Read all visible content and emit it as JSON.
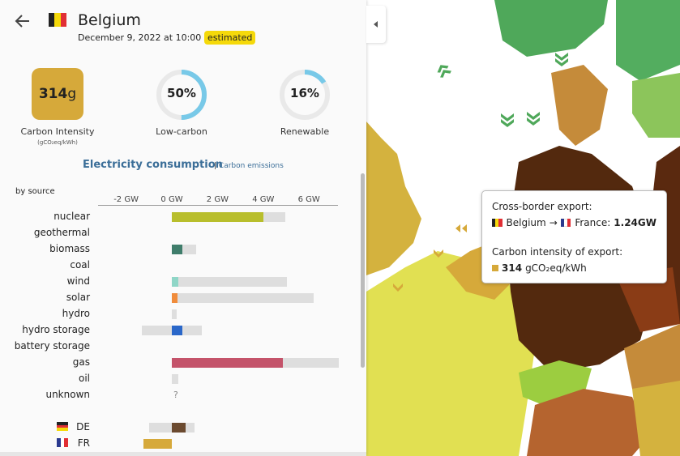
{
  "zone": {
    "name": "Belgium",
    "datetime": "December 9, 2022 at 10:00 AM",
    "status_badge": "estimated"
  },
  "metrics": {
    "carbon_intensity": {
      "value": "314",
      "unit": "g",
      "label": "Carbon Intensity",
      "sublabel": "(gCO₂eq/kWh)",
      "color": "#d6a93a"
    },
    "low_carbon": {
      "value": "50%",
      "fraction": 0.5,
      "label": "Low-carbon"
    },
    "renewable": {
      "value": "16%",
      "fraction": 0.16,
      "label": "Renewable"
    }
  },
  "tabs": {
    "active": "Electricity consumption",
    "separator": "|",
    "other": "Carbon emissions"
  },
  "chart_data": {
    "type": "bar",
    "title": "by source",
    "xlabel": "",
    "ylabel": "",
    "x_ticks": [
      "-2 GW",
      "0 GW",
      "2 GW",
      "4 GW",
      "6 GW"
    ],
    "xlim": [
      -3.2,
      7.3
    ],
    "categories": [
      "nuclear",
      "geothermal",
      "biomass",
      "coal",
      "wind",
      "solar",
      "hydro",
      "hydro storage",
      "battery storage",
      "gas",
      "oil",
      "unknown"
    ],
    "series": [
      {
        "name": "production",
        "values": [
          4.0,
          0,
          0.45,
          0,
          0.3,
          0.25,
          0,
          0.45,
          0,
          4.85,
          0,
          0
        ],
        "colors": [
          "#b8be2c",
          "#cccccc",
          "#3f7d6b",
          "#cccccc",
          "#8fd6c7",
          "#f08c3c",
          "#cccccc",
          "#2a67c9",
          "#cccccc",
          "#c4536a",
          "#cccccc",
          "#cccccc"
        ]
      },
      {
        "name": "capacity",
        "values": [
          4.95,
          0,
          1.05,
          0,
          5.05,
          6.2,
          0.2,
          1.3,
          0,
          7.3,
          0.3,
          0
        ]
      },
      {
        "name": "capacity_negative",
        "values": [
          0,
          0,
          0,
          0,
          0,
          0,
          0,
          -1.3,
          0,
          0,
          0,
          0
        ]
      }
    ],
    "unknown_marker": "?",
    "exchanges": [
      {
        "zone": "DE",
        "value": 0.6,
        "capacity_min": -1.0,
        "capacity_max": 1.0,
        "color": "#6b4a2f"
      },
      {
        "zone": "FR",
        "value": -1.24,
        "capacity_min": -1.24,
        "capacity_max": 0,
        "color": "#d6a93a"
      }
    ]
  },
  "tooltip": {
    "title": "Cross-border export:",
    "from": "Belgium",
    "arrow": "→",
    "to": "France:",
    "amount": "1.24GW",
    "ci_title": "Carbon intensity of export:",
    "ci_value": "314",
    "ci_unit": "gCO₂eq/kWh",
    "ci_color": "#d6a93a"
  },
  "icons": {
    "back": "back-arrow-icon",
    "collapse": "chevron-left-icon"
  }
}
